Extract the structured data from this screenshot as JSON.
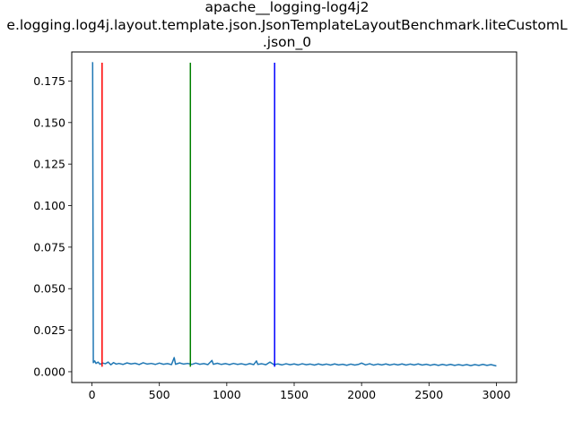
{
  "chart_data": {
    "type": "line",
    "title_lines": [
      "apache__logging-log4j2",
      "e.logging.log4j.layout.template.json.JsonTemplateLayoutBenchmark.liteCustomL",
      ".json_0"
    ],
    "xlabel": "",
    "ylabel": "",
    "xlim": [
      -150,
      3150
    ],
    "ylim": [
      -0.0065,
      0.1925
    ],
    "xticks": [
      0,
      500,
      1000,
      1500,
      2000,
      2500,
      3000
    ],
    "xtick_labels": [
      "0",
      "500",
      "1000",
      "1500",
      "2000",
      "2500",
      "3000"
    ],
    "yticks": [
      0.0,
      0.025,
      0.05,
      0.075,
      0.1,
      0.125,
      0.15,
      0.175
    ],
    "ytick_labels": [
      "0.000",
      "0.025",
      "0.050",
      "0.075",
      "0.100",
      "0.125",
      "0.150",
      "0.175"
    ],
    "grid": false,
    "series": [
      {
        "color": "#1f77b4",
        "points": [
          [
            0,
            0.186
          ],
          [
            5,
            0.186
          ],
          [
            10,
            0.0055
          ],
          [
            20,
            0.0065
          ],
          [
            30,
            0.005
          ],
          [
            45,
            0.0058
          ],
          [
            60,
            0.0045
          ],
          [
            80,
            0.0052
          ],
          [
            100,
            0.0048
          ],
          [
            120,
            0.0058
          ],
          [
            140,
            0.0042
          ],
          [
            160,
            0.0055
          ],
          [
            180,
            0.0046
          ],
          [
            200,
            0.005
          ],
          [
            230,
            0.0044
          ],
          [
            260,
            0.0053
          ],
          [
            290,
            0.0047
          ],
          [
            320,
            0.0051
          ],
          [
            350,
            0.0043
          ],
          [
            380,
            0.0054
          ],
          [
            410,
            0.0046
          ],
          [
            440,
            0.005
          ],
          [
            470,
            0.0044
          ],
          [
            500,
            0.0052
          ],
          [
            530,
            0.0045
          ],
          [
            560,
            0.0049
          ],
          [
            590,
            0.0043
          ],
          [
            610,
            0.0085
          ],
          [
            620,
            0.0045
          ],
          [
            650,
            0.0053
          ],
          [
            680,
            0.0046
          ],
          [
            710,
            0.005
          ],
          [
            740,
            0.0044
          ],
          [
            770,
            0.0052
          ],
          [
            800,
            0.0045
          ],
          [
            830,
            0.0049
          ],
          [
            860,
            0.0043
          ],
          [
            890,
            0.0068
          ],
          [
            900,
            0.0045
          ],
          [
            930,
            0.0051
          ],
          [
            960,
            0.0044
          ],
          [
            990,
            0.0049
          ],
          [
            1020,
            0.0043
          ],
          [
            1050,
            0.005
          ],
          [
            1080,
            0.0044
          ],
          [
            1110,
            0.0048
          ],
          [
            1140,
            0.0042
          ],
          [
            1170,
            0.0049
          ],
          [
            1200,
            0.0043
          ],
          [
            1220,
            0.0065
          ],
          [
            1230,
            0.0044
          ],
          [
            1260,
            0.0048
          ],
          [
            1290,
            0.0042
          ],
          [
            1320,
            0.0058
          ],
          [
            1350,
            0.0043
          ],
          [
            1380,
            0.0047
          ],
          [
            1410,
            0.0041
          ],
          [
            1440,
            0.0048
          ],
          [
            1470,
            0.0042
          ],
          [
            1500,
            0.0047
          ],
          [
            1530,
            0.0041
          ],
          [
            1560,
            0.0048
          ],
          [
            1590,
            0.0042
          ],
          [
            1620,
            0.0046
          ],
          [
            1650,
            0.004
          ],
          [
            1680,
            0.0047
          ],
          [
            1710,
            0.0041
          ],
          [
            1740,
            0.0046
          ],
          [
            1770,
            0.004
          ],
          [
            1800,
            0.0047
          ],
          [
            1830,
            0.0041
          ],
          [
            1860,
            0.0045
          ],
          [
            1890,
            0.0039
          ],
          [
            1920,
            0.0046
          ],
          [
            1950,
            0.004
          ],
          [
            1980,
            0.0045
          ],
          [
            2000,
            0.0052
          ],
          [
            2030,
            0.0041
          ],
          [
            2060,
            0.0048
          ],
          [
            2090,
            0.004
          ],
          [
            2120,
            0.0046
          ],
          [
            2150,
            0.0041
          ],
          [
            2180,
            0.0047
          ],
          [
            2210,
            0.004
          ],
          [
            2240,
            0.0046
          ],
          [
            2270,
            0.0041
          ],
          [
            2300,
            0.0047
          ],
          [
            2330,
            0.004
          ],
          [
            2360,
            0.0046
          ],
          [
            2390,
            0.0041
          ],
          [
            2420,
            0.0047
          ],
          [
            2450,
            0.004
          ],
          [
            2480,
            0.0045
          ],
          [
            2510,
            0.0039
          ],
          [
            2540,
            0.0044
          ],
          [
            2570,
            0.0038
          ],
          [
            2600,
            0.0044
          ],
          [
            2630,
            0.0039
          ],
          [
            2660,
            0.0044
          ],
          [
            2690,
            0.0038
          ],
          [
            2720,
            0.0043
          ],
          [
            2750,
            0.0038
          ],
          [
            2780,
            0.0043
          ],
          [
            2810,
            0.0037
          ],
          [
            2840,
            0.0043
          ],
          [
            2870,
            0.0038
          ],
          [
            2900,
            0.0044
          ],
          [
            2930,
            0.0038
          ],
          [
            2960,
            0.0043
          ],
          [
            2980,
            0.0039
          ],
          [
            3000,
            0.0035
          ]
        ]
      }
    ],
    "vlines": [
      {
        "x": 75,
        "y_range": [
          0.003,
          0.186
        ],
        "color": "#ff0000"
      },
      {
        "x": 730,
        "y_range": [
          0.003,
          0.186
        ],
        "color": "#008000"
      },
      {
        "x": 1355,
        "y_range": [
          0.003,
          0.186
        ],
        "color": "#0000ff"
      }
    ]
  }
}
